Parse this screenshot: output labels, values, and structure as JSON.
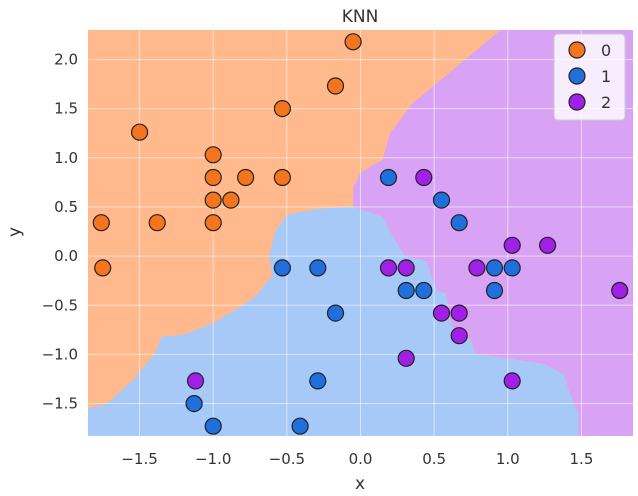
{
  "chart_data": {
    "type": "scatter",
    "title": "KNN",
    "xlabel": "x",
    "ylabel": "y",
    "xlim": [
      -1.85,
      1.85
    ],
    "ylim": [
      -1.83,
      2.3
    ],
    "xticks": [
      -1.5,
      -1.0,
      -0.5,
      0.0,
      0.5,
      1.0,
      1.5
    ],
    "yticks": [
      -1.5,
      -1.0,
      -0.5,
      0.0,
      0.5,
      1.0,
      1.5,
      2.0
    ],
    "xtick_labels": [
      "−1.5",
      "−1.0",
      "−0.5",
      "0.0",
      "0.5",
      "1.0",
      "1.5"
    ],
    "ytick_labels": [
      "−1.5",
      "−1.0",
      "−0.5",
      "0.0",
      "0.5",
      "1.0",
      "1.5",
      "2.0"
    ],
    "grid": true,
    "legend_position": "top-right",
    "colors": {
      "0": "#f5751e",
      "1": "#1f6fdc",
      "2": "#a020e8",
      "region_0": "#ffb98c",
      "region_1": "#a7c9f7",
      "region_2": "#d9a3f5"
    },
    "series": [
      {
        "name": "0",
        "points": [
          [
            -0.05,
            2.18
          ],
          [
            -0.17,
            1.73
          ],
          [
            -0.53,
            1.5
          ],
          [
            -1.5,
            1.26
          ],
          [
            -1.0,
            1.03
          ],
          [
            -1.0,
            0.8
          ],
          [
            -0.78,
            0.8
          ],
          [
            -0.53,
            0.8
          ],
          [
            -1.0,
            0.57
          ],
          [
            -0.88,
            0.57
          ],
          [
            -1.76,
            0.34
          ],
          [
            -1.38,
            0.34
          ],
          [
            -1.0,
            0.34
          ],
          [
            -1.75,
            -0.12
          ]
        ]
      },
      {
        "name": "1",
        "points": [
          [
            0.19,
            0.8
          ],
          [
            0.55,
            0.57
          ],
          [
            0.67,
            0.34
          ],
          [
            -0.53,
            -0.12
          ],
          [
            -0.29,
            -0.12
          ],
          [
            0.91,
            -0.12
          ],
          [
            1.03,
            -0.12
          ],
          [
            0.31,
            -0.35
          ],
          [
            0.43,
            -0.35
          ],
          [
            0.91,
            -0.35
          ],
          [
            -0.17,
            -0.58
          ],
          [
            -0.29,
            -1.27
          ],
          [
            -1.13,
            -1.5
          ],
          [
            -1.0,
            -1.73
          ],
          [
            -0.41,
            -1.73
          ]
        ]
      },
      {
        "name": "2",
        "points": [
          [
            0.43,
            0.8
          ],
          [
            1.03,
            0.11
          ],
          [
            1.27,
            0.11
          ],
          [
            0.19,
            -0.12
          ],
          [
            0.31,
            -0.12
          ],
          [
            0.79,
            -0.12
          ],
          [
            1.76,
            -0.35
          ],
          [
            0.55,
            -0.58
          ],
          [
            0.67,
            -0.58
          ],
          [
            0.67,
            -0.81
          ],
          [
            0.31,
            -1.04
          ],
          [
            -1.12,
            -1.27
          ],
          [
            1.03,
            -1.27
          ]
        ]
      }
    ],
    "decision_regions": [
      {
        "class": "1",
        "polygon": [
          [
            -1.85,
            -1.83
          ],
          [
            -1.85,
            -1.55
          ],
          [
            -1.72,
            -1.5
          ],
          [
            -1.55,
            -1.27
          ],
          [
            -1.4,
            -1.0
          ],
          [
            -1.35,
            -0.82
          ],
          [
            -1.2,
            -0.8
          ],
          [
            -1.0,
            -0.68
          ],
          [
            -0.8,
            -0.5
          ],
          [
            -0.72,
            -0.42
          ],
          [
            -0.6,
            -0.2
          ],
          [
            -0.62,
            0.0
          ],
          [
            -0.58,
            0.25
          ],
          [
            -0.5,
            0.42
          ],
          [
            -0.3,
            0.48
          ],
          [
            -0.05,
            0.5
          ],
          [
            0.05,
            0.45
          ],
          [
            0.15,
            0.4
          ],
          [
            0.2,
            0.25
          ],
          [
            0.3,
            0.0
          ],
          [
            0.45,
            -0.05
          ],
          [
            0.48,
            -0.2
          ],
          [
            0.52,
            -0.35
          ],
          [
            0.58,
            -0.38
          ],
          [
            0.62,
            -0.72
          ],
          [
            0.75,
            -0.85
          ],
          [
            0.78,
            -1.0
          ],
          [
            0.9,
            -1.02
          ],
          [
            1.05,
            -1.05
          ],
          [
            1.25,
            -1.1
          ],
          [
            1.38,
            -1.2
          ],
          [
            1.42,
            -1.4
          ],
          [
            1.48,
            -1.6
          ],
          [
            1.48,
            -1.83
          ]
        ]
      },
      {
        "class": "2",
        "polygon": [
          [
            -0.05,
            0.5
          ],
          [
            0.05,
            0.45
          ],
          [
            0.15,
            0.4
          ],
          [
            0.2,
            0.25
          ],
          [
            0.3,
            0.0
          ],
          [
            0.45,
            -0.05
          ],
          [
            0.48,
            -0.2
          ],
          [
            0.52,
            -0.35
          ],
          [
            0.58,
            -0.38
          ],
          [
            0.62,
            -0.72
          ],
          [
            0.75,
            -0.85
          ],
          [
            0.78,
            -1.0
          ],
          [
            0.9,
            -1.02
          ],
          [
            1.05,
            -1.05
          ],
          [
            1.25,
            -1.1
          ],
          [
            1.38,
            -1.2
          ],
          [
            1.42,
            -1.4
          ],
          [
            1.48,
            -1.6
          ],
          [
            1.48,
            -1.83
          ],
          [
            1.85,
            -1.83
          ],
          [
            1.85,
            2.3
          ],
          [
            0.95,
            2.3
          ],
          [
            0.75,
            2.05
          ],
          [
            0.55,
            1.8
          ],
          [
            0.35,
            1.55
          ],
          [
            0.2,
            1.25
          ],
          [
            0.15,
            0.98
          ],
          [
            0.0,
            0.85
          ],
          [
            -0.05,
            0.7
          ]
        ]
      }
    ]
  }
}
